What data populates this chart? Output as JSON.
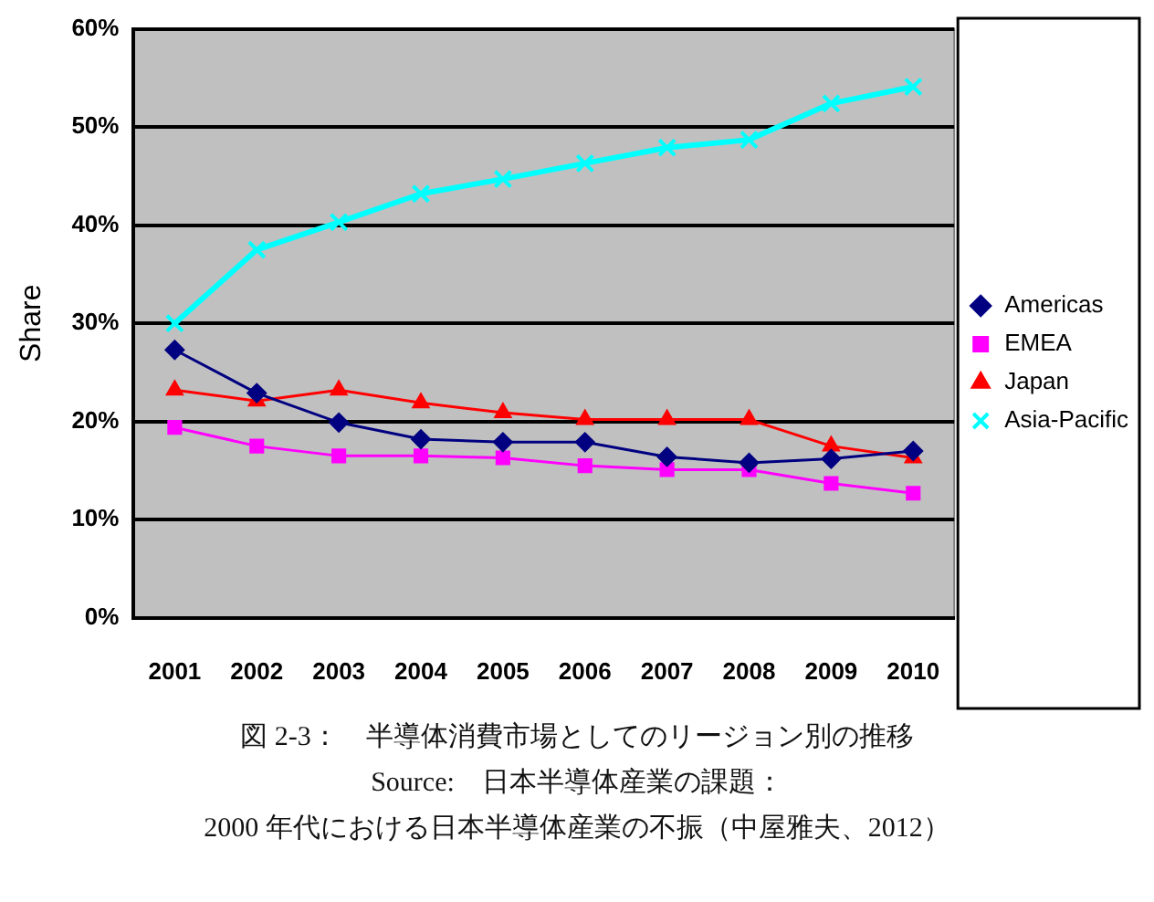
{
  "chart_data": {
    "type": "line",
    "ylabel": "Share",
    "categories": [
      "2001",
      "2002",
      "2003",
      "2004",
      "2005",
      "2006",
      "2007",
      "2008",
      "2009",
      "2010"
    ],
    "series": [
      {
        "name": "Americas",
        "color": "#000080",
        "marker": "diamond",
        "values": [
          27.3,
          22.9,
          19.9,
          18.2,
          17.9,
          17.9,
          16.4,
          15.8,
          16.2,
          17.0
        ]
      },
      {
        "name": "EMEA",
        "color": "#ff00ff",
        "marker": "square",
        "values": [
          19.4,
          17.5,
          16.5,
          16.5,
          16.3,
          15.5,
          15.1,
          15.1,
          13.7,
          12.7
        ]
      },
      {
        "name": "Japan",
        "color": "#ff0000",
        "marker": "triangle",
        "values": [
          23.2,
          22.1,
          23.2,
          21.9,
          20.9,
          20.2,
          20.2,
          20.2,
          17.5,
          16.3
        ]
      },
      {
        "name": "Asia-Pacific",
        "color": "#00ffff",
        "marker": "cross",
        "values": [
          30.0,
          37.5,
          40.3,
          43.2,
          44.7,
          46.3,
          47.9,
          48.7,
          52.4,
          54.1
        ]
      }
    ],
    "ylim": [
      0,
      60
    ],
    "yticks": [
      {
        "value": 0,
        "label": "0%"
      },
      {
        "value": 10,
        "label": "10%"
      },
      {
        "value": 20,
        "label": "20%"
      },
      {
        "value": 30,
        "label": "30%"
      },
      {
        "value": 40,
        "label": "40%"
      },
      {
        "value": 50,
        "label": "50%"
      },
      {
        "value": 60,
        "label": "60%"
      }
    ],
    "grid": "y",
    "legend": "right",
    "annotations": [
      "図 2-3：　半導体消費市場としてのリージョン別の推移",
      "Source:　日本半導体産業の課題：",
      "2000 年代における日本半導体産業の不振（中屋雅夫、2012）"
    ]
  }
}
